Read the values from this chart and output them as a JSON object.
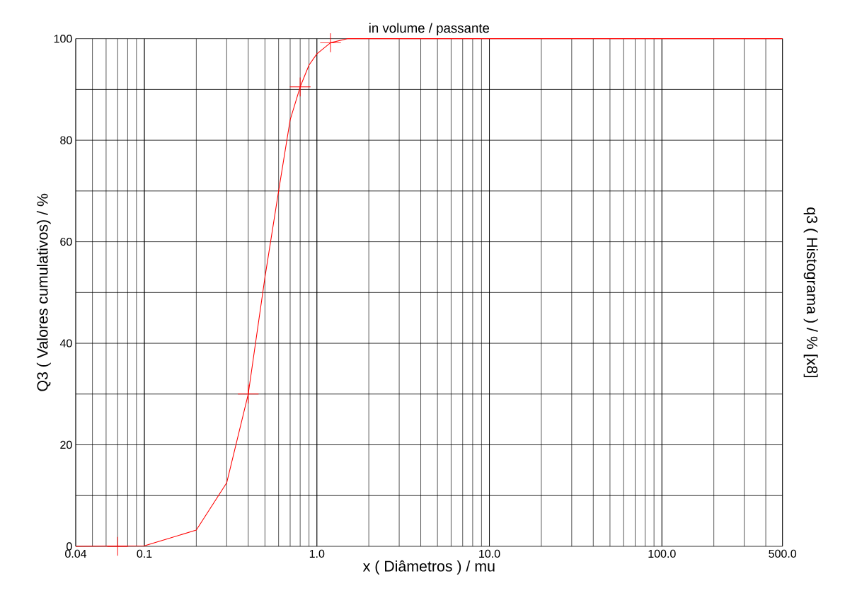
{
  "chart_data": {
    "type": "line",
    "title": "in volume / passante",
    "xlabel": "x ( Diâmetros ) / mu",
    "ylabel": "Q3 ( Valores cumulativos) / %",
    "y2label": "q3 ( Histograma ) / % [x8]",
    "log": "x",
    "grid": true,
    "xlim": [
      0.04,
      500
    ],
    "ylim": [
      0,
      100
    ],
    "xticks": [
      0.04,
      0.1,
      {
        "value": 1,
        "label": "1.0"
      },
      {
        "value": 10,
        "label": "10.0"
      },
      {
        "value": 100,
        "label": "100.0"
      },
      {
        "value": 500,
        "label": "500.0"
      }
    ],
    "yticks": [
      0,
      {
        "value": 10,
        "label": null
      },
      20,
      {
        "value": 30,
        "label": null
      },
      40,
      {
        "value": 50,
        "label": null
      },
      60,
      {
        "value": 70,
        "label": null
      },
      80,
      {
        "value": 90,
        "label": null
      },
      100
    ],
    "series": [
      {
        "type": "line",
        "color": "#ff0000",
        "marker": "none",
        "x": [
          0.04,
          0.1,
          0.2,
          0.3,
          0.4,
          0.5,
          0.6,
          0.7,
          0.8,
          0.9,
          1.0,
          1.2,
          1.5,
          500
        ],
        "values": [
          0,
          0.1,
          3.2,
          12.5,
          30,
          53,
          70,
          84,
          90.5,
          94.8,
          97,
          99.2,
          100,
          100
        ]
      },
      {
        "type": "scatter",
        "color": "#ff0000",
        "marker": "cross",
        "x": [
          0.07,
          0.4,
          0.8,
          1.2
        ],
        "values": [
          0,
          30,
          90.5,
          99.2
        ]
      }
    ]
  }
}
